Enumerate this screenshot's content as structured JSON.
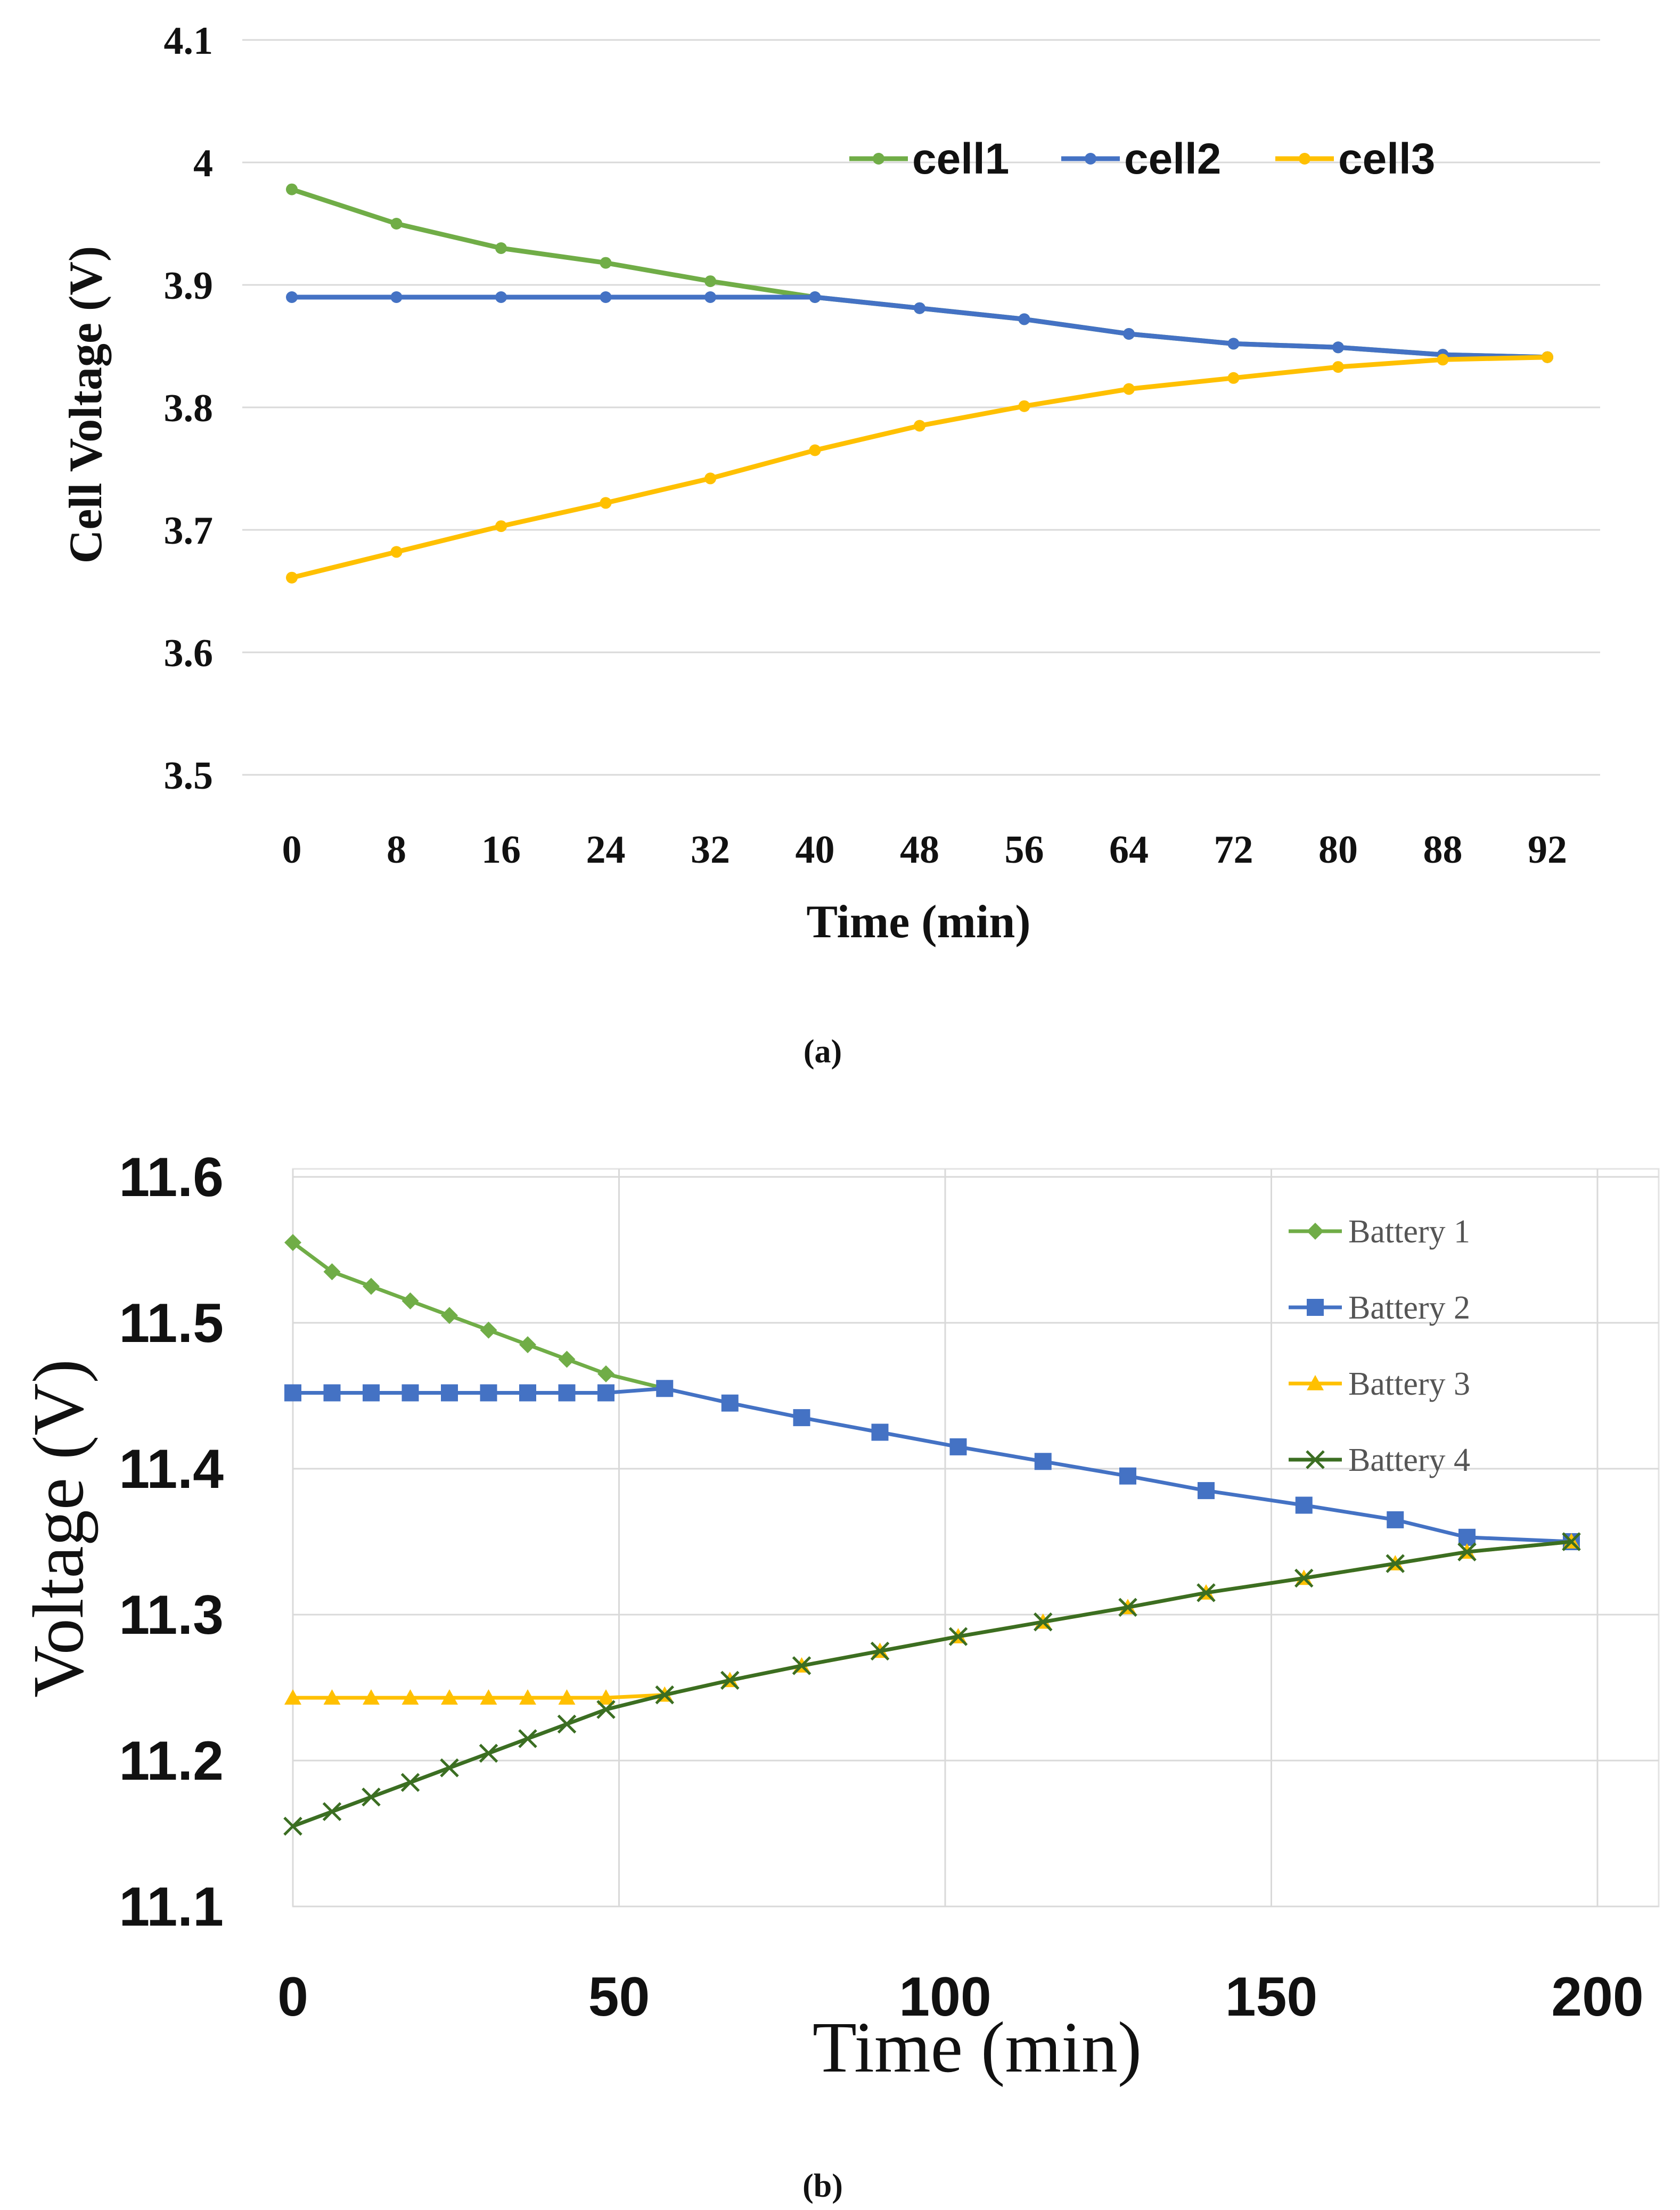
{
  "chart_data": [
    {
      "type": "line",
      "panel_label": "(a)",
      "xlabel": "Time (min)",
      "ylabel": "Cell Voltage (V)",
      "categories": [
        "0",
        "8",
        "16",
        "24",
        "32",
        "40",
        "48",
        "56",
        "64",
        "72",
        "80",
        "88",
        "92"
      ],
      "ylim": [
        3.5,
        4.1
      ],
      "yticks": [
        "3.5",
        "3.6",
        "3.7",
        "3.8",
        "3.9",
        "4",
        "4.1"
      ],
      "grid": true,
      "legend_position": "top-right",
      "series": [
        {
          "name": "cell1",
          "color": "#70ad47",
          "marker": "circle",
          "values": [
            3.978,
            3.95,
            3.93,
            3.918,
            3.903,
            3.89,
            3.881,
            3.872,
            3.86,
            3.852,
            3.849,
            3.843,
            3.841
          ]
        },
        {
          "name": "cell2",
          "color": "#4472c4",
          "marker": "circle",
          "values": [
            3.89,
            3.89,
            3.89,
            3.89,
            3.89,
            3.89,
            3.881,
            3.872,
            3.86,
            3.852,
            3.849,
            3.843,
            3.841
          ]
        },
        {
          "name": "cell3",
          "color": "#ffc000",
          "marker": "circle",
          "values": [
            3.661,
            3.682,
            3.703,
            3.722,
            3.742,
            3.765,
            3.785,
            3.801,
            3.815,
            3.824,
            3.833,
            3.839,
            3.841
          ]
        }
      ]
    },
    {
      "type": "line",
      "panel_label": "(b)",
      "xlabel": "Time (min)",
      "ylabel": "Voltage (V)",
      "xlim": [
        0,
        210
      ],
      "xticks": [
        "0",
        "50",
        "100",
        "150",
        "200"
      ],
      "ylim": [
        11.1,
        11.6
      ],
      "yticks": [
        "11.1",
        "11.2",
        "11.3",
        "11.4",
        "11.5",
        "11.6"
      ],
      "grid": true,
      "legend_position": "top-right",
      "series": [
        {
          "name": "Battery 1",
          "color": "#70ad47",
          "marker": "diamond",
          "x": [
            0,
            6,
            12,
            18,
            24,
            30,
            36,
            42,
            48,
            57
          ],
          "y": [
            11.555,
            11.535,
            11.525,
            11.515,
            11.505,
            11.495,
            11.485,
            11.475,
            11.465,
            11.455
          ]
        },
        {
          "name": "Battery 2",
          "color": "#4472c4",
          "marker": "square",
          "x": [
            0,
            6,
            12,
            18,
            24,
            30,
            36,
            42,
            48,
            57,
            67,
            78,
            90,
            102,
            115,
            128,
            140,
            155,
            169,
            180,
            196
          ],
          "y": [
            11.452,
            11.452,
            11.452,
            11.452,
            11.452,
            11.452,
            11.452,
            11.452,
            11.452,
            11.455,
            11.445,
            11.435,
            11.425,
            11.415,
            11.405,
            11.395,
            11.385,
            11.375,
            11.365,
            11.353,
            11.35
          ]
        },
        {
          "name": "Battery 3",
          "color": "#ffc000",
          "marker": "triangle",
          "x": [
            0,
            6,
            12,
            18,
            24,
            30,
            36,
            42,
            48,
            57,
            67,
            78,
            90,
            102,
            115,
            128,
            140,
            155,
            169,
            180,
            196
          ],
          "y": [
            11.243,
            11.243,
            11.243,
            11.243,
            11.243,
            11.243,
            11.243,
            11.243,
            11.243,
            11.245,
            11.255,
            11.265,
            11.275,
            11.285,
            11.295,
            11.305,
            11.315,
            11.325,
            11.335,
            11.343,
            11.35
          ]
        },
        {
          "name": "Battery 4",
          "color": "#3b6e22",
          "marker": "x",
          "x": [
            0,
            6,
            12,
            18,
            24,
            30,
            36,
            42,
            48,
            57,
            67,
            78,
            90,
            102,
            115,
            128,
            140,
            155,
            169,
            180,
            196
          ],
          "y": [
            11.155,
            11.165,
            11.175,
            11.185,
            11.195,
            11.205,
            11.215,
            11.225,
            11.235,
            11.245,
            11.255,
            11.265,
            11.275,
            11.285,
            11.295,
            11.305,
            11.315,
            11.325,
            11.335,
            11.343,
            11.35
          ]
        }
      ]
    }
  ]
}
